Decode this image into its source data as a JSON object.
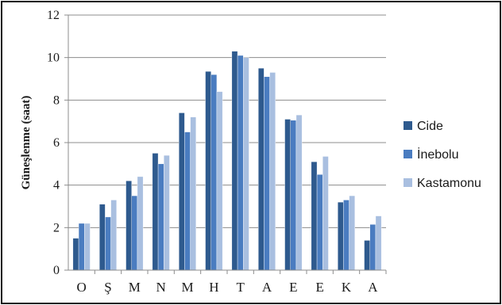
{
  "chart_data": {
    "type": "bar",
    "title": "",
    "xlabel": "",
    "ylabel": "Güneşlenme (saat)",
    "ylim": [
      0,
      12
    ],
    "yticks": [
      0,
      2,
      4,
      6,
      8,
      10,
      12
    ],
    "grid": true,
    "legend": "right",
    "categories": [
      "O",
      "Ş",
      "M",
      "N",
      "M",
      "H",
      "T",
      "A",
      "E",
      "E",
      "K",
      "A"
    ],
    "series": [
      {
        "name": "Cide",
        "color": "#2E5A8E",
        "values": [
          1.5,
          3.1,
          4.2,
          5.5,
          7.4,
          9.35,
          10.3,
          9.5,
          7.1,
          5.1,
          3.2,
          1.4
        ]
      },
      {
        "name": "İnebolu",
        "color": "#4A7CC0",
        "values": [
          2.2,
          2.5,
          3.5,
          5.0,
          6.5,
          9.2,
          10.1,
          9.1,
          7.05,
          4.5,
          3.3,
          2.15
        ]
      },
      {
        "name": "Kastamonu",
        "color": "#A9BFE0",
        "values": [
          2.2,
          3.3,
          4.4,
          5.4,
          7.2,
          8.4,
          10.0,
          9.3,
          7.3,
          5.35,
          3.5,
          2.55
        ]
      }
    ]
  }
}
